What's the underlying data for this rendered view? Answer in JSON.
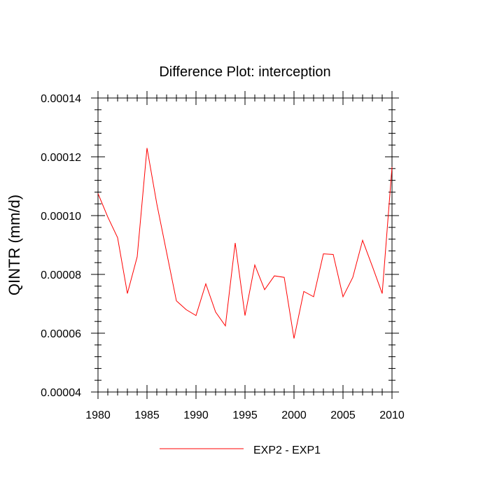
{
  "chart_data": {
    "type": "line",
    "title": "Difference Plot: interception",
    "xlabel": "",
    "ylabel": "QINTR  (mm/d)",
    "xlim": [
      1980,
      2010
    ],
    "ylim": [
      4e-05,
      0.00014
    ],
    "x_ticks": [
      1980,
      1985,
      1990,
      1995,
      2000,
      2005,
      2010
    ],
    "x_tick_labels": [
      "1980",
      "1985",
      "1990",
      "1995",
      "2000",
      "2005",
      "2010"
    ],
    "y_ticks": [
      4e-05,
      6e-05,
      8e-05,
      0.0001,
      0.00012,
      0.00014
    ],
    "y_tick_labels": [
      "0.00004",
      "0.00006",
      "0.00008",
      "0.00010",
      "0.00012",
      "0.00014"
    ],
    "grid": false,
    "legend_position": "bottom",
    "x": [
      1980,
      1981,
      1982,
      1983,
      1984,
      1985,
      1986,
      1987,
      1988,
      1989,
      1990,
      1991,
      1992,
      1993,
      1994,
      1995,
      1996,
      1997,
      1998,
      1999,
      2000,
      2001,
      2002,
      2003,
      2004,
      2005,
      2006,
      2007,
      2008,
      2009,
      2010
    ],
    "series": [
      {
        "name": "EXP2 - EXP1",
        "color": "#ff0000",
        "values": [
          0.0001075,
          9.95e-05,
          9.25e-05,
          7.35e-05,
          8.6e-05,
          0.000123,
          0.000104,
          8.75e-05,
          7.1e-05,
          6.8e-05,
          6.6e-05,
          7.68e-05,
          6.72e-05,
          6.25e-05,
          9.07e-05,
          6.6e-05,
          8.32e-05,
          7.48e-05,
          7.95e-05,
          7.9e-05,
          5.82e-05,
          7.42e-05,
          7.24e-05,
          8.7e-05,
          8.68e-05,
          7.24e-05,
          7.9e-05,
          9.16e-05,
          8.27e-05,
          7.35e-05,
          0.0001165
        ]
      }
    ]
  }
}
